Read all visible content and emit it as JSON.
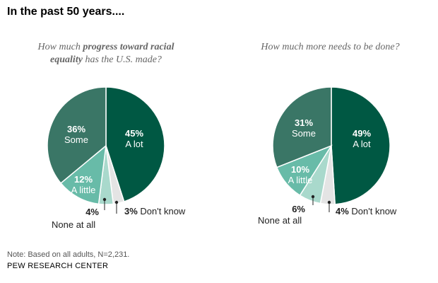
{
  "header": {
    "title": "In the past 50 years...."
  },
  "colors": {
    "a_lot": "#005843",
    "some": "#3a7666",
    "a_little": "#68bba8",
    "none_at_all": "#a9d9cc",
    "dont_know": "#e4e4e4",
    "label_light": "#ffffff",
    "label_dark": "#222222"
  },
  "chart_data": [
    {
      "type": "pie",
      "title_parts": [
        "How much ",
        "progress toward racial",
        " equality",
        " has the U.S. made?"
      ],
      "slices": [
        {
          "key": "a_lot",
          "label": "A lot",
          "value": 45,
          "pct": "45%"
        },
        {
          "key": "dont_know",
          "label": "Don't know",
          "value": 3,
          "pct": "3%"
        },
        {
          "key": "none_at_all",
          "label": "None at all",
          "value": 4,
          "pct": "4%"
        },
        {
          "key": "a_little",
          "label": "A little",
          "value": 12,
          "pct": "12%"
        },
        {
          "key": "some",
          "label": "Some",
          "value": 36,
          "pct": "36%"
        }
      ]
    },
    {
      "type": "pie",
      "title": "How much more needs to be done?",
      "slices": [
        {
          "key": "a_lot",
          "label": "A lot",
          "value": 49,
          "pct": "49%"
        },
        {
          "key": "dont_know",
          "label": "Don't know",
          "value": 4,
          "pct": "4%"
        },
        {
          "key": "none_at_all",
          "label": "None at all",
          "value": 6,
          "pct": "6%"
        },
        {
          "key": "a_little",
          "label": "A little",
          "value": 10,
          "pct": "10%"
        },
        {
          "key": "some",
          "label": "Some",
          "value": 31,
          "pct": "31%"
        }
      ]
    }
  ],
  "footer": {
    "note": "Note: Based on all adults, N=2,231.",
    "source": "PEW RESEARCH CENTER"
  }
}
